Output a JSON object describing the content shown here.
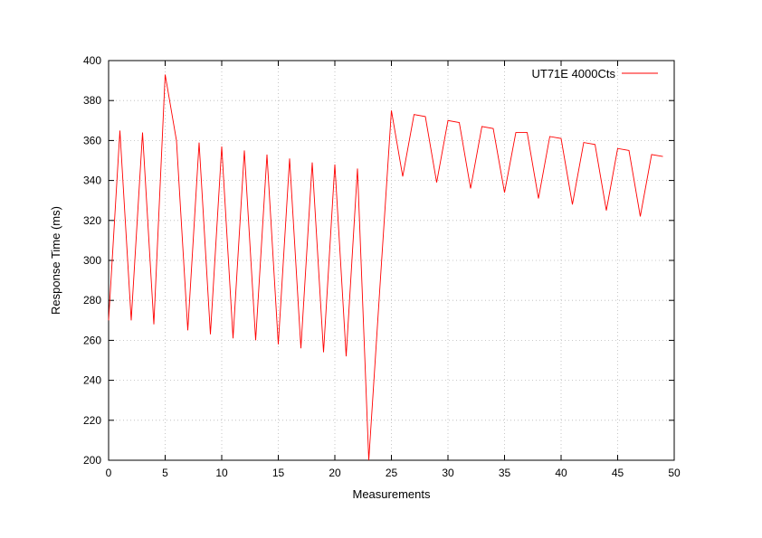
{
  "chart_data": {
    "type": "line",
    "xlabel": "Measurements",
    "ylabel": "Response Time (ms)",
    "xlim": [
      0,
      50
    ],
    "ylim": [
      200,
      400
    ],
    "xticks": [
      0,
      5,
      10,
      15,
      20,
      25,
      30,
      35,
      40,
      45,
      50
    ],
    "yticks": [
      200,
      220,
      240,
      260,
      280,
      300,
      320,
      340,
      360,
      380,
      400
    ],
    "grid": true,
    "legend_position": "top-right",
    "series": [
      {
        "name": "UT71E 4000Cts",
        "color": "#ff0000",
        "x": [
          0,
          1,
          2,
          3,
          4,
          5,
          6,
          7,
          8,
          9,
          10,
          11,
          12,
          13,
          14,
          15,
          16,
          17,
          18,
          19,
          20,
          21,
          22,
          23,
          24,
          25,
          26,
          27,
          28,
          29,
          30,
          31,
          32,
          33,
          34,
          35,
          36,
          37,
          38,
          39,
          40,
          41,
          42,
          43,
          44,
          45,
          46,
          47,
          48,
          49
        ],
        "values": [
          270,
          365,
          270,
          364,
          268,
          393,
          360,
          265,
          359,
          263,
          357,
          261,
          355,
          260,
          353,
          258,
          351,
          256,
          349,
          254,
          348,
          252,
          346,
          200,
          288,
          375,
          342,
          373,
          372,
          339,
          370,
          369,
          336,
          367,
          366,
          334,
          364,
          364,
          331,
          362,
          361,
          328,
          359,
          358,
          325,
          356,
          355,
          322,
          353,
          352
        ]
      }
    ]
  }
}
